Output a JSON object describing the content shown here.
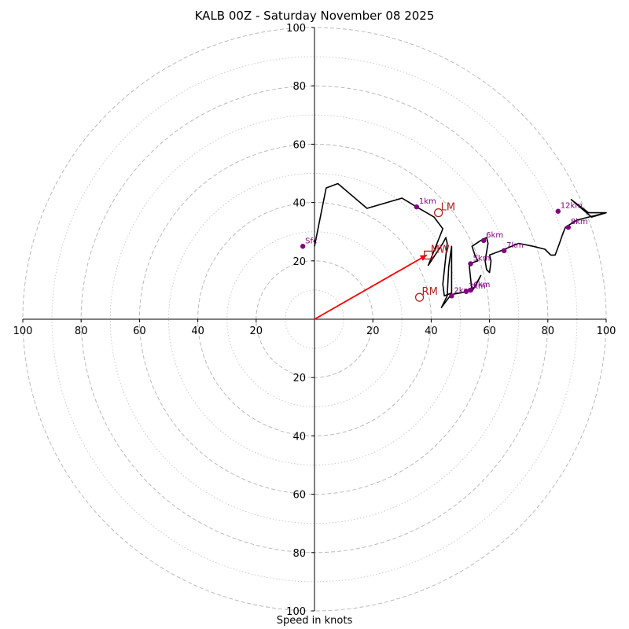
{
  "title": "KALB 00Z - Saturday November 08 2025",
  "footer": "Speed in knots",
  "chart_data": {
    "type": "hodograph",
    "title": "KALB 00Z - Saturday November 08 2025",
    "xlabel": "Speed in knots",
    "range": [
      -100,
      100
    ],
    "rings_major": [
      20,
      40,
      60,
      80,
      100
    ],
    "rings_minor": [
      10,
      30,
      50,
      70,
      90
    ],
    "tick_labels": [
      "100",
      "80",
      "60",
      "40",
      "20",
      "20",
      "40",
      "60",
      "80",
      "100"
    ],
    "grid": true,
    "colors": {
      "trace": "#000000",
      "height_points": "#800080",
      "motion": "#b22222",
      "shear_vector": "#ff0000",
      "grid": "#bbbbbb"
    },
    "trace": [
      [
        0,
        25
      ],
      [
        4,
        45
      ],
      [
        8,
        46.5
      ],
      [
        18,
        38
      ],
      [
        30,
        41.5
      ],
      [
        35,
        38.5
      ],
      [
        41,
        35
      ],
      [
        44,
        31
      ],
      [
        39,
        18.5
      ],
      [
        44,
        26
      ],
      [
        45,
        28
      ],
      [
        45.5,
        26
      ],
      [
        44,
        12
      ],
      [
        44.5,
        8
      ],
      [
        47,
        9
      ],
      [
        47,
        25
      ],
      [
        46,
        18
      ],
      [
        45.5,
        8
      ],
      [
        44.5,
        6
      ],
      [
        43.5,
        4
      ],
      [
        46.5,
        8
      ],
      [
        47,
        8.5
      ],
      [
        50,
        9
      ],
      [
        52,
        9.5
      ],
      [
        55,
        11
      ],
      [
        56,
        13
      ],
      [
        57,
        15
      ],
      [
        54,
        9.5
      ],
      [
        53,
        19
      ],
      [
        56,
        20
      ],
      [
        55,
        22
      ],
      [
        54,
        25
      ],
      [
        57,
        27
      ],
      [
        59,
        28
      ],
      [
        59.5,
        26
      ],
      [
        58.5,
        20
      ],
      [
        59,
        17
      ],
      [
        60,
        16
      ],
      [
        60.5,
        20
      ],
      [
        60,
        22
      ],
      [
        64,
        23.5
      ],
      [
        70,
        26
      ],
      [
        75,
        25
      ],
      [
        79,
        24
      ],
      [
        81,
        22
      ],
      [
        82.5,
        22
      ],
      [
        84,
        26
      ],
      [
        85,
        29
      ],
      [
        86,
        31.5
      ],
      [
        90,
        34
      ],
      [
        94,
        35
      ],
      [
        100,
        36.5
      ],
      [
        95,
        35
      ],
      [
        88,
        41
      ],
      [
        94,
        36.5
      ],
      [
        100,
        36.5
      ]
    ],
    "height_points": [
      {
        "label": "Sfc",
        "x": -4,
        "y": 25
      },
      {
        "label": "1km",
        "x": 35,
        "y": 38.5
      },
      {
        "label": "2km",
        "x": 47,
        "y": 8
      },
      {
        "label": "3km",
        "x": 52,
        "y": 9.5
      },
      {
        "label": "4km",
        "x": 53.5,
        "y": 10
      },
      {
        "label": "5km",
        "x": 53.5,
        "y": 19
      },
      {
        "label": "6km",
        "x": 58,
        "y": 27
      },
      {
        "label": "7km",
        "x": 65,
        "y": 23.5
      },
      {
        "label": "8km",
        "x": 87,
        "y": 31.5
      },
      {
        "label": "12km",
        "x": 83.5,
        "y": 37
      }
    ],
    "storm_motion": [
      {
        "label": "LM",
        "x": 42.5,
        "y": 36.5,
        "marker": "circle"
      },
      {
        "label": "MW",
        "x": 39,
        "y": 22,
        "marker": "square"
      },
      {
        "label": "RM",
        "x": 36,
        "y": 7.5,
        "marker": "circle"
      }
    ],
    "shear_vector": {
      "from": [
        0,
        0
      ],
      "to": [
        38.5,
        22
      ]
    }
  }
}
